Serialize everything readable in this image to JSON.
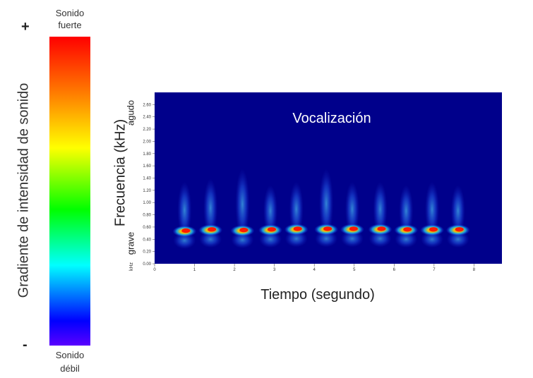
{
  "legend": {
    "top_label": "Sonido fuerte",
    "bottom_label": "Sonido débil",
    "title": "Gradiente de intensidad de sonido",
    "plus": "+",
    "minus": "-",
    "colors": [
      "#ff0000",
      "#ff7a00",
      "#ffff00",
      "#00ff00",
      "#00ffff",
      "#0000ff",
      "#5a00ff"
    ]
  },
  "chart_data": {
    "type": "heatmap",
    "title": "Vocalización",
    "xlabel": "Tiempo (segundo)",
    "ylabel": "Frecuencia (kHz)",
    "ylabel_high": "agudo",
    "ylabel_low": "grave",
    "y_unit": "kHz",
    "xlim": [
      0,
      8.7
    ],
    "ylim": [
      0,
      2.8
    ],
    "x_ticks": [
      "0",
      "1",
      "2",
      "3",
      "4",
      "5",
      "6",
      "7",
      "8"
    ],
    "y_ticks": [
      "0.00",
      "0.20",
      "0.40",
      "0.60",
      "0.80",
      "1.00",
      "1.20",
      "1.40",
      "1.60",
      "1.80",
      "2.00",
      "2.20",
      "2.40",
      "2.60"
    ],
    "background_color": "#00008b",
    "calls": [
      {
        "time": 0.75,
        "peak_freq": 0.53,
        "top_freq": 1.3
      },
      {
        "time": 1.4,
        "peak_freq": 0.55,
        "top_freq": 1.35
      },
      {
        "time": 2.2,
        "peak_freq": 0.54,
        "top_freq": 1.5
      },
      {
        "time": 2.9,
        "peak_freq": 0.55,
        "top_freq": 1.25
      },
      {
        "time": 3.55,
        "peak_freq": 0.56,
        "top_freq": 1.3
      },
      {
        "time": 4.3,
        "peak_freq": 0.56,
        "top_freq": 1.5
      },
      {
        "time": 4.95,
        "peak_freq": 0.56,
        "top_freq": 1.3
      },
      {
        "time": 5.65,
        "peak_freq": 0.56,
        "top_freq": 1.3
      },
      {
        "time": 6.3,
        "peak_freq": 0.55,
        "top_freq": 1.25
      },
      {
        "time": 6.95,
        "peak_freq": 0.55,
        "top_freq": 1.3
      },
      {
        "time": 7.6,
        "peak_freq": 0.55,
        "top_freq": 1.25
      }
    ]
  }
}
